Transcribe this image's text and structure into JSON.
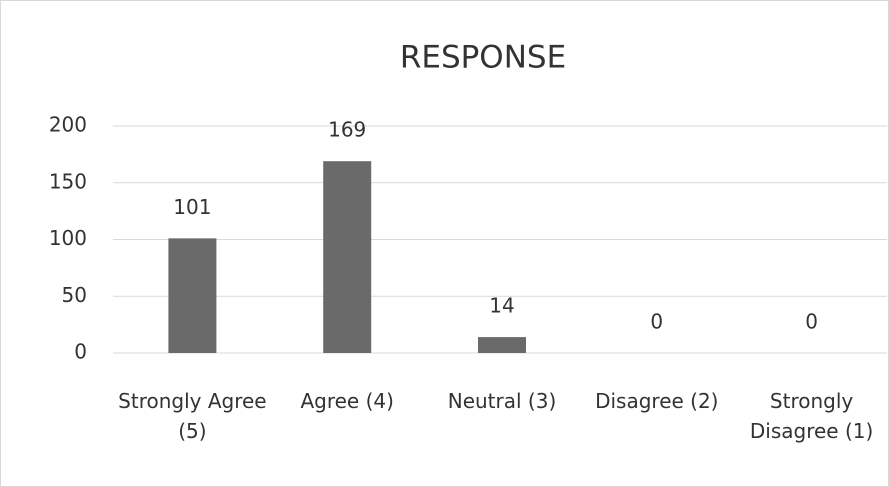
{
  "chart_data": {
    "type": "bar",
    "title": "RESPONSE",
    "categories": [
      "Strongly Agree (5)",
      "Agree (4)",
      "Neutral (3)",
      "Disagree (2)",
      "Strongly Disagree (1)"
    ],
    "values": [
      101,
      169,
      14,
      0,
      0
    ],
    "color": "#6a6a6a",
    "ylim": [
      0,
      200
    ],
    "yticks": [
      0,
      50,
      100,
      150,
      200
    ],
    "grid": true
  }
}
